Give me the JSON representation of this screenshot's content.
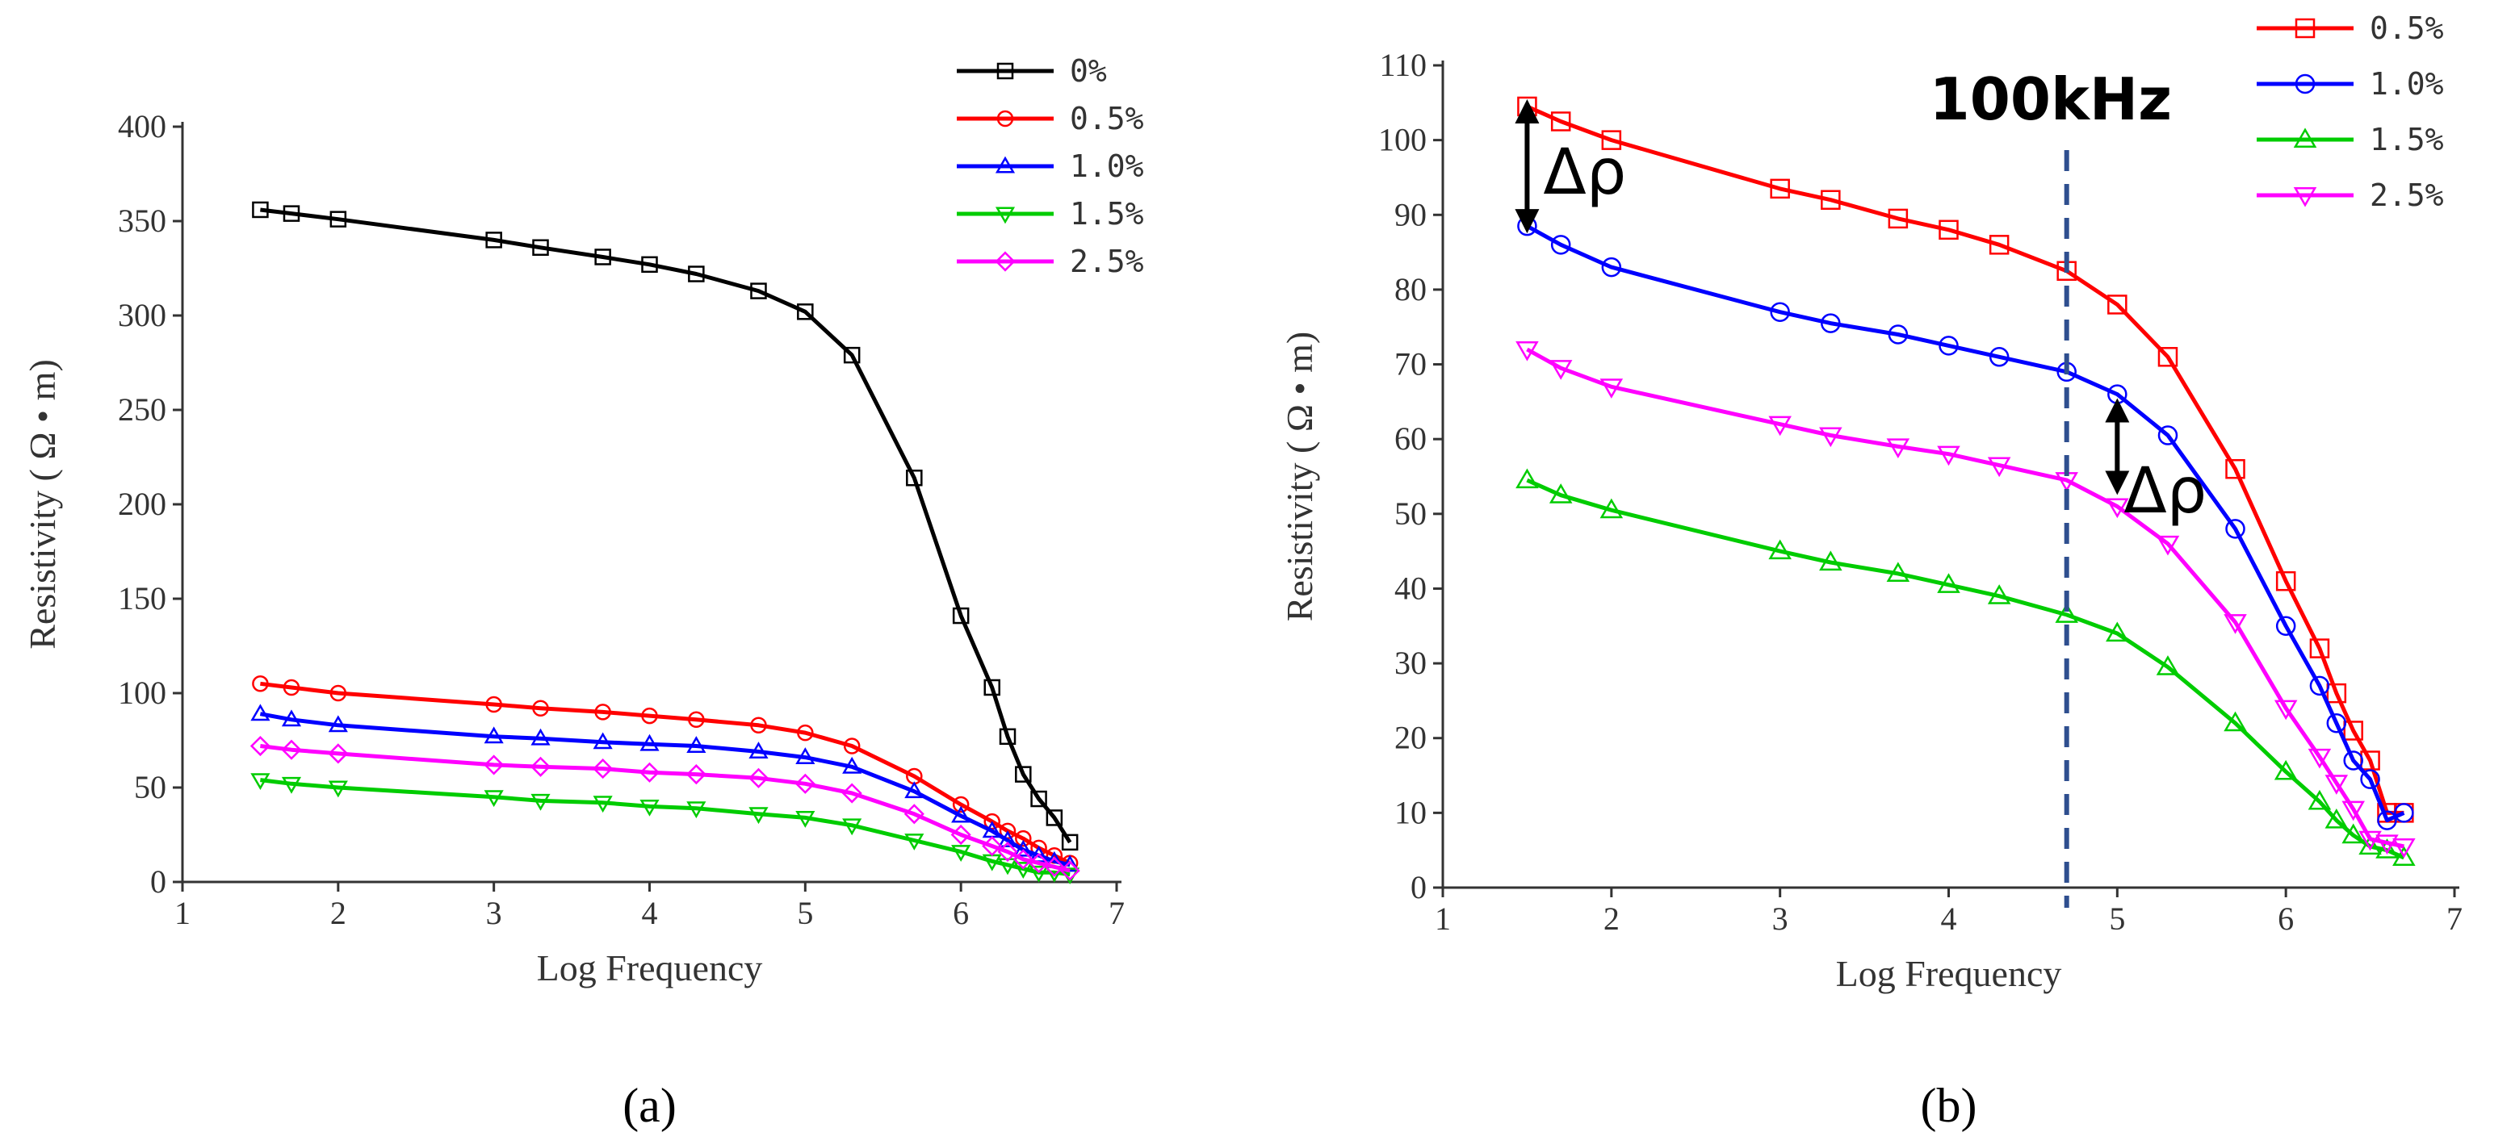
{
  "chart_data": [
    {
      "type": "line",
      "panel_label": "(a)",
      "xlabel": "Log Frequency",
      "ylabel": "Resistivity ( Ω • m)",
      "xlim": [
        1,
        7
      ],
      "ylim": [
        0,
        400
      ],
      "xticks": [
        "1",
        "2",
        "3",
        "4",
        "5",
        "6",
        "7"
      ],
      "yticks": [
        "0",
        "50",
        "100",
        "150",
        "200",
        "250",
        "300",
        "350",
        "400"
      ],
      "x": [
        1.5,
        1.7,
        2,
        3,
        3.3,
        3.7,
        4,
        4.3,
        4.7,
        5,
        5.3,
        5.7,
        6,
        6.2,
        6.3,
        6.4,
        6.5,
        6.6,
        6.7
      ],
      "legend_position": "top-right",
      "series": [
        {
          "name": "0%",
          "color": "#000000",
          "marker": "square",
          "values": [
            356,
            354,
            351,
            340,
            336,
            331,
            327,
            322,
            313,
            302,
            279,
            214,
            141,
            103,
            77,
            57,
            44,
            34,
            21
          ]
        },
        {
          "name": "0.5%",
          "color": "#ff0000",
          "marker": "circle",
          "values": [
            105,
            103,
            100,
            94,
            92,
            90,
            88,
            86,
            83,
            79,
            72,
            56,
            41,
            32,
            27,
            23,
            18,
            14,
            10
          ]
        },
        {
          "name": "1.0%",
          "color": "#0000ff",
          "marker": "triangle-up",
          "values": [
            89,
            86,
            83,
            77,
            76,
            74,
            73,
            72,
            69,
            66,
            61,
            48,
            35,
            27,
            22,
            17,
            14,
            11,
            9
          ]
        },
        {
          "name": "1.5%",
          "color": "#00cc00",
          "marker": "triangle-down",
          "values": [
            54,
            52,
            50,
            45,
            43,
            42,
            40,
            39,
            36,
            34,
            30,
            22,
            16,
            11,
            9,
            7,
            5,
            5,
            4
          ]
        },
        {
          "name": "2.5%",
          "color": "#ff00ff",
          "marker": "diamond",
          "values": [
            72,
            70,
            68,
            62,
            61,
            60,
            58,
            57,
            55,
            52,
            47,
            36,
            25,
            19,
            16,
            12,
            10,
            8,
            6
          ]
        }
      ]
    },
    {
      "type": "line",
      "panel_label": "(b)",
      "xlabel": "Log Frequency",
      "ylabel": "Resistivity ( Ω • m)",
      "xlim": [
        1,
        7
      ],
      "ylim": [
        0,
        110
      ],
      "xticks": [
        "1",
        "2",
        "3",
        "4",
        "5",
        "6",
        "7"
      ],
      "yticks": [
        "0",
        "10",
        "20",
        "30",
        "40",
        "50",
        "60",
        "70",
        "80",
        "90",
        "100",
        "110"
      ],
      "x": [
        1.5,
        1.7,
        2,
        3,
        3.3,
        3.7,
        4,
        4.3,
        4.7,
        5,
        5.3,
        5.7,
        6,
        6.2,
        6.3,
        6.4,
        6.5,
        6.6,
        6.7
      ],
      "legend_position": "top-right",
      "annotations": {
        "vertical_line_x": 4.7,
        "vertical_line_label": "100kHz",
        "delta_label": "Δρ",
        "delta_1": {
          "x": 1.5,
          "from": 104.5,
          "to": 88.5
        },
        "delta_2": {
          "x": 5.0,
          "from": 64.5,
          "to": 53.5
        }
      },
      "series": [
        {
          "name": "0.5%",
          "color": "#ff0000",
          "marker": "square",
          "values": [
            104.5,
            102.5,
            100,
            93.5,
            92,
            89.5,
            88,
            86,
            82.5,
            78,
            71,
            56,
            41,
            32,
            26,
            21,
            17,
            10,
            10
          ]
        },
        {
          "name": "1.0%",
          "color": "#0000ff",
          "marker": "circle",
          "values": [
            88.5,
            86,
            83,
            77,
            75.5,
            74,
            72.5,
            71,
            69,
            66,
            60.5,
            48,
            35,
            27,
            22,
            17,
            14.5,
            9,
            10
          ]
        },
        {
          "name": "1.5%",
          "color": "#00cc00",
          "marker": "triangle-up",
          "values": [
            54.5,
            52.5,
            50.5,
            45,
            43.5,
            42,
            40.5,
            39,
            36.5,
            34,
            29.5,
            22,
            15.5,
            11.5,
            9,
            7,
            5.5,
            5,
            4
          ]
        },
        {
          "name": "2.5%",
          "color": "#ff00ff",
          "marker": "triangle-down",
          "values": [
            72,
            69.5,
            67,
            62,
            60.5,
            59,
            58,
            56.5,
            54.5,
            51,
            46,
            35.5,
            24,
            17.5,
            14,
            10.5,
            6.5,
            6,
            5.5
          ]
        }
      ]
    }
  ]
}
